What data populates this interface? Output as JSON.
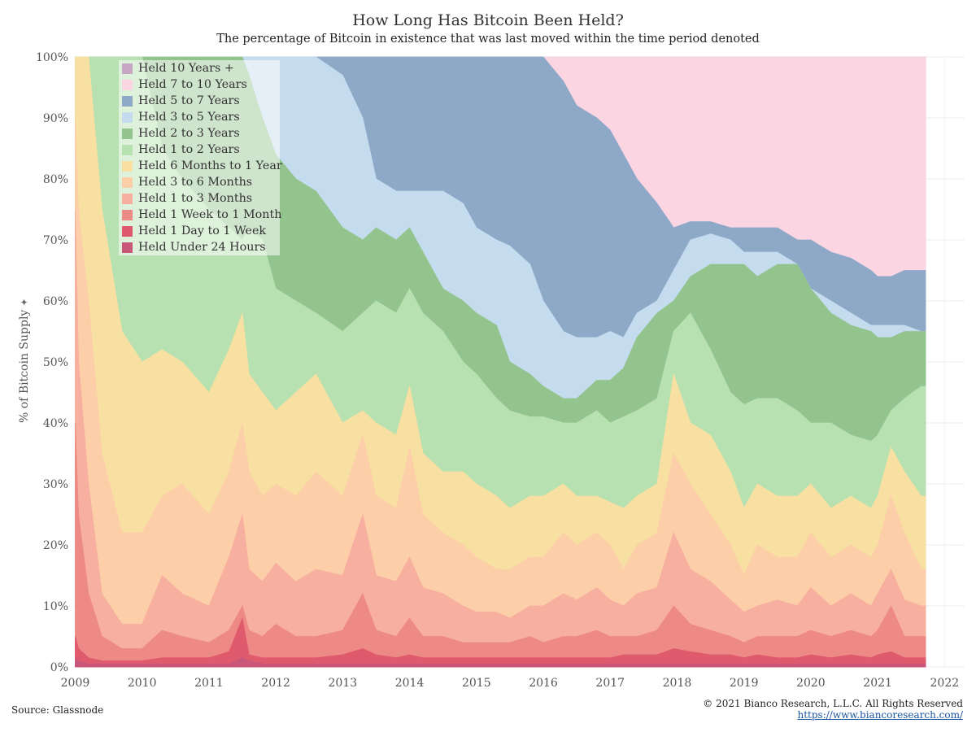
{
  "header": {
    "title": "How Long Has Bitcoin Been Held?",
    "subtitle": "The percentage of Bitcoin in existence that was last moved within the time period denoted"
  },
  "footer": {
    "source": "Source: Glassnode",
    "copyright": "© 2021 Bianco Research, L.L.C. All Rights Reserved",
    "url": "https://www.biancoresearch.com/"
  },
  "chart_data": {
    "type": "area",
    "stacked": true,
    "ylabel": "% of Bitcoin Supply",
    "ylabel_icon": "pin-icon",
    "ylim": [
      0,
      100
    ],
    "xlim": [
      2008.97,
      2022.3
    ],
    "xticks": [
      "2009",
      "2010",
      "2011",
      "2012",
      "2013",
      "2014",
      "2015",
      "2016",
      "2017",
      "2018",
      "2019",
      "2020",
      "2021",
      "2022"
    ],
    "yticks": [
      "0%",
      "10%",
      "20%",
      "30%",
      "40%",
      "50%",
      "60%",
      "70%",
      "80%",
      "90%",
      "100%"
    ],
    "legend_position": "top-left",
    "grid": true,
    "x": [
      2009.0,
      2009.05,
      2009.2,
      2009.4,
      2009.7,
      2010.0,
      2010.3,
      2010.6,
      2011.0,
      2011.3,
      2011.5,
      2011.6,
      2011.8,
      2012.0,
      2012.3,
      2012.6,
      2013.0,
      2013.3,
      2013.5,
      2013.8,
      2014.0,
      2014.2,
      2014.5,
      2014.8,
      2015.0,
      2015.3,
      2015.5,
      2015.8,
      2016.0,
      2016.3,
      2016.5,
      2016.8,
      2017.0,
      2017.2,
      2017.4,
      2017.7,
      2017.95,
      2018.2,
      2018.5,
      2018.8,
      2019.0,
      2019.2,
      2019.5,
      2019.8,
      2020.0,
      2020.3,
      2020.6,
      2020.9,
      2021.0,
      2021.2,
      2021.4,
      2021.65
    ],
    "cumulative_tops": [
      [
        1.5,
        1,
        0.5,
        0.5,
        0.5,
        0.5,
        0.5,
        0.5,
        0.5,
        0.5,
        1.5,
        1,
        0.5,
        0.5,
        0.5,
        0.5,
        0.5,
        0.5,
        0.5,
        0.5,
        0.5,
        0.5,
        0.5,
        0.5,
        0.5,
        0.5,
        0.5,
        0.5,
        0.5,
        0.5,
        0.5,
        0.5,
        0.5,
        0.5,
        0.5,
        0.5,
        0.5,
        0.5,
        0.5,
        0.5,
        0.5,
        0.5,
        0.5,
        0.5,
        0.5,
        0.5,
        0.5,
        0.5,
        0.5,
        0.5,
        0.5,
        0.5
      ],
      [
        5,
        3,
        1.5,
        1,
        1,
        1,
        1.5,
        1.5,
        1.5,
        2.5,
        8,
        2,
        1.5,
        1.5,
        1.5,
        1.5,
        2,
        3,
        2,
        1.5,
        2,
        1.5,
        1.5,
        1.5,
        1.5,
        1.5,
        1.5,
        1.5,
        1.5,
        1.5,
        1.5,
        1.5,
        1.5,
        2,
        2,
        2,
        3,
        2.5,
        2,
        2,
        1.5,
        2,
        1.5,
        1.5,
        2,
        1.5,
        2,
        1.5,
        2,
        2.5,
        1.5,
        1.5
      ],
      [
        40,
        25,
        12,
        5,
        3,
        3,
        6,
        5,
        4,
        6,
        10,
        6,
        5,
        7,
        5,
        5,
        6,
        12,
        6,
        5,
        8,
        5,
        5,
        4,
        4,
        4,
        4,
        5,
        4,
        5,
        5,
        6,
        5,
        5,
        5,
        6,
        10,
        7,
        6,
        5,
        4,
        5,
        5,
        5,
        6,
        5,
        6,
        5,
        6,
        10,
        5,
        5
      ],
      [
        75,
        50,
        30,
        12,
        7,
        7,
        15,
        12,
        10,
        18,
        25,
        16,
        14,
        17,
        14,
        16,
        15,
        25,
        15,
        14,
        18,
        13,
        12,
        10,
        9,
        9,
        8,
        10,
        10,
        12,
        11,
        13,
        11,
        10,
        12,
        13,
        22,
        16,
        14,
        11,
        9,
        10,
        11,
        10,
        13,
        10,
        12,
        10,
        12,
        16,
        11,
        10
      ],
      [
        90,
        75,
        60,
        35,
        22,
        22,
        28,
        30,
        25,
        32,
        40,
        32,
        28,
        30,
        28,
        32,
        28,
        38,
        28,
        26,
        36,
        25,
        22,
        20,
        18,
        16,
        16,
        18,
        18,
        22,
        20,
        22,
        20,
        16,
        20,
        22,
        35,
        30,
        25,
        20,
        15,
        20,
        18,
        18,
        22,
        18,
        20,
        18,
        20,
        28,
        22,
        16
      ],
      [
        100,
        100,
        100,
        75,
        55,
        50,
        52,
        50,
        45,
        52,
        58,
        48,
        45,
        42,
        45,
        48,
        40,
        42,
        40,
        38,
        46,
        35,
        32,
        32,
        30,
        28,
        26,
        28,
        28,
        30,
        28,
        28,
        27,
        26,
        28,
        30,
        48,
        40,
        38,
        32,
        26,
        30,
        28,
        28,
        30,
        26,
        28,
        26,
        28,
        36,
        32,
        28
      ],
      [
        100,
        100,
        100,
        100,
        100,
        100,
        85,
        80,
        75,
        72,
        70,
        72,
        70,
        62,
        60,
        58,
        55,
        58,
        60,
        58,
        62,
        58,
        55,
        50,
        48,
        44,
        42,
        41,
        41,
        40,
        40,
        42,
        40,
        41,
        42,
        44,
        55,
        58,
        52,
        45,
        43,
        44,
        44,
        42,
        40,
        40,
        38,
        37,
        38,
        42,
        44,
        46
      ],
      [
        100,
        100,
        100,
        100,
        100,
        100,
        100,
        100,
        100,
        100,
        100,
        97,
        90,
        84,
        80,
        78,
        72,
        70,
        72,
        70,
        72,
        68,
        62,
        60,
        58,
        56,
        50,
        48,
        46,
        44,
        44,
        47,
        47,
        49,
        54,
        58,
        60,
        64,
        66,
        66,
        66,
        64,
        66,
        66,
        62,
        58,
        56,
        55,
        54,
        54,
        55,
        55
      ],
      [
        100,
        100,
        100,
        100,
        100,
        100,
        100,
        100,
        100,
        100,
        100,
        100,
        100,
        100,
        100,
        100,
        97,
        90,
        80,
        78,
        78,
        78,
        78,
        76,
        72,
        70,
        69,
        66,
        60,
        55,
        54,
        54,
        55,
        54,
        58,
        60,
        65,
        70,
        71,
        70,
        68,
        68,
        68,
        66,
        62,
        60,
        58,
        56,
        56,
        56,
        56,
        55
      ],
      [
        100,
        100,
        100,
        100,
        100,
        100,
        100,
        100,
        100,
        100,
        100,
        100,
        100,
        100,
        100,
        100,
        100,
        100,
        100,
        100,
        100,
        100,
        100,
        100,
        100,
        100,
        100,
        100,
        100,
        96,
        92,
        90,
        88,
        84,
        80,
        76,
        72,
        73,
        73,
        72,
        72,
        72,
        72,
        70,
        70,
        68,
        67,
        65,
        64,
        64,
        65,
        65
      ],
      [
        100,
        100,
        100,
        100,
        100,
        100,
        100,
        100,
        100,
        100,
        100,
        100,
        100,
        100,
        100,
        100,
        100,
        100,
        100,
        100,
        100,
        100,
        100,
        100,
        100,
        100,
        100,
        100,
        100,
        100,
        100,
        100,
        100,
        100,
        100,
        100,
        100,
        100,
        100,
        100,
        100,
        100,
        100,
        100,
        100,
        100,
        100,
        100,
        100,
        100,
        100,
        100
      ],
      [
        100,
        100,
        100,
        100,
        100,
        100,
        100,
        100,
        100,
        100,
        100,
        100,
        100,
        100,
        100,
        100,
        100,
        100,
        100,
        100,
        100,
        100,
        100,
        100,
        100,
        100,
        100,
        100,
        100,
        100,
        100,
        100,
        100,
        100,
        100,
        100,
        100,
        100,
        100,
        100,
        100,
        100,
        100,
        100,
        100,
        100,
        100,
        100,
        100,
        100,
        100,
        100
      ]
    ],
    "series": [
      {
        "name": "Held Under 24 Hours",
        "color": "#c9577a"
      },
      {
        "name": "Held 1 Day to 1 Week",
        "color": "#e05a6e"
      },
      {
        "name": "Held 1 Week to 1 Month",
        "color": "#ee8a85"
      },
      {
        "name": "Held 1 to 3 Months",
        "color": "#f7b0a0"
      },
      {
        "name": "Held 3 to 6 Months",
        "color": "#fccfa8"
      },
      {
        "name": "Held 6 Months to 1 Year",
        "color": "#f7e0a1"
      },
      {
        "name": "Held 1 to 2 Years",
        "color": "#b7e1b0"
      },
      {
        "name": "Held 2 to 3 Years",
        "color": "#94c48e"
      },
      {
        "name": "Held 3 to 5 Years",
        "color": "#c5dcef"
      },
      {
        "name": "Held 5 to 7 Years",
        "color": "#8ea8c8"
      },
      {
        "name": "Held 7 to 10 Years",
        "color": "#fbd5e2"
      },
      {
        "name": "Held 10 Years +",
        "color": "#c8a7c5"
      }
    ]
  }
}
